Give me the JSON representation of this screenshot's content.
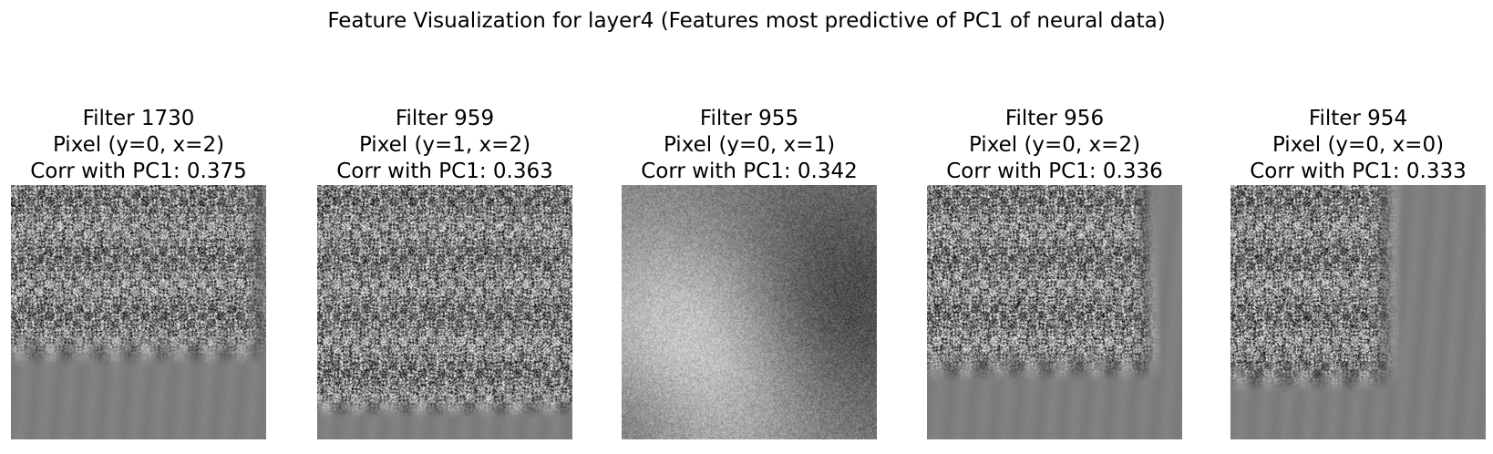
{
  "figure": {
    "title": "Feature Visualization for layer4 (Features most predictive of PC1 of neural data)"
  },
  "panels": [
    {
      "filter_label": "Filter 1730",
      "pixel_label": "Pixel (y=0, x=2)",
      "corr_label": "Corr with PC1: 0.375",
      "texture": "textured-upper-left-flat-bottom"
    },
    {
      "filter_label": "Filter 959",
      "pixel_label": "Pixel (y=1, x=2)",
      "corr_label": "Corr with PC1: 0.363",
      "texture": "textured-most-flat-bottom-strip"
    },
    {
      "filter_label": "Filter 955",
      "pixel_label": "Pixel (y=0, x=1)",
      "corr_label": "Corr with PC1: 0.342",
      "texture": "smooth-blotchy-noise"
    },
    {
      "filter_label": "Filter 956",
      "pixel_label": "Pixel (y=0, x=2)",
      "corr_label": "Corr with PC1: 0.336",
      "texture": "textured-upper-left-flat-bottom-right"
    },
    {
      "filter_label": "Filter 954",
      "pixel_label": "Pixel (y=0, x=0)",
      "corr_label": "Corr with PC1: 0.333",
      "texture": "textured-upper-left-flat-right"
    }
  ]
}
